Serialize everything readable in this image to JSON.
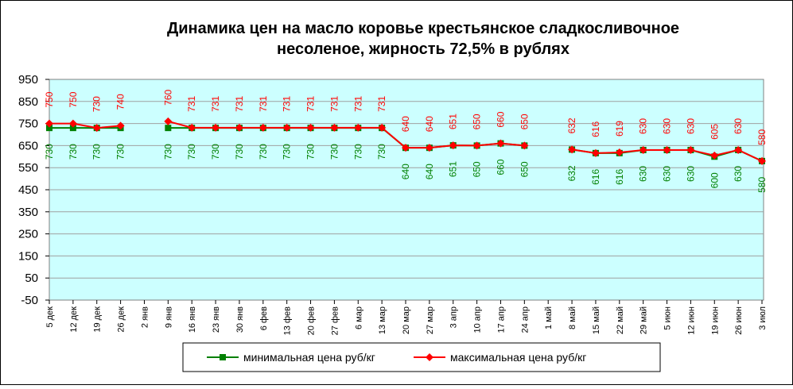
{
  "chart_data": {
    "type": "line",
    "title": "Динамика цен на масло коровье крестьянское  сладкосливочное",
    "subtitle": "несоленое, жирность 72,5%  в рублях",
    "categories": [
      "5 дек",
      "12 дек",
      "19 дек",
      "26 дек",
      "2 янв",
      "9 янв",
      "16 янв",
      "23 янв",
      "30 янв",
      "6 фев",
      "13 фев",
      "20 фев",
      "27 фев",
      "6 мар",
      "13 мар",
      "20 мар",
      "27 мар",
      "3 апр",
      "10 апр",
      "17 апр",
      "24 апр",
      "1 май",
      "8 май",
      "15 май",
      "22 май",
      "29 май",
      "5 июн",
      "12 июн",
      "19 июн",
      "26 июн",
      "3 июл"
    ],
    "series": [
      {
        "name": "минимальная цена руб/кг",
        "color": "#008000",
        "marker": "square",
        "values": [
          730,
          730,
          730,
          730,
          null,
          730,
          730,
          730,
          730,
          730,
          730,
          730,
          730,
          730,
          730,
          640,
          640,
          651,
          650,
          660,
          650,
          null,
          632,
          616,
          616,
          630,
          630,
          630,
          600,
          630,
          580
        ]
      },
      {
        "name": "максимальная цена руб/кг",
        "color": "#ff0000",
        "marker": "diamond",
        "values": [
          750,
          750,
          730,
          740,
          null,
          760,
          731,
          731,
          731,
          731,
          731,
          731,
          731,
          731,
          731,
          640,
          640,
          651,
          650,
          660,
          650,
          null,
          632,
          616,
          619,
          630,
          630,
          630,
          605,
          630,
          580
        ]
      }
    ],
    "ylim": [
      -50,
      950
    ],
    "yticks": [
      -50,
      50,
      150,
      250,
      350,
      450,
      550,
      650,
      750,
      850,
      950
    ],
    "grid": true,
    "legend": "bottom"
  }
}
